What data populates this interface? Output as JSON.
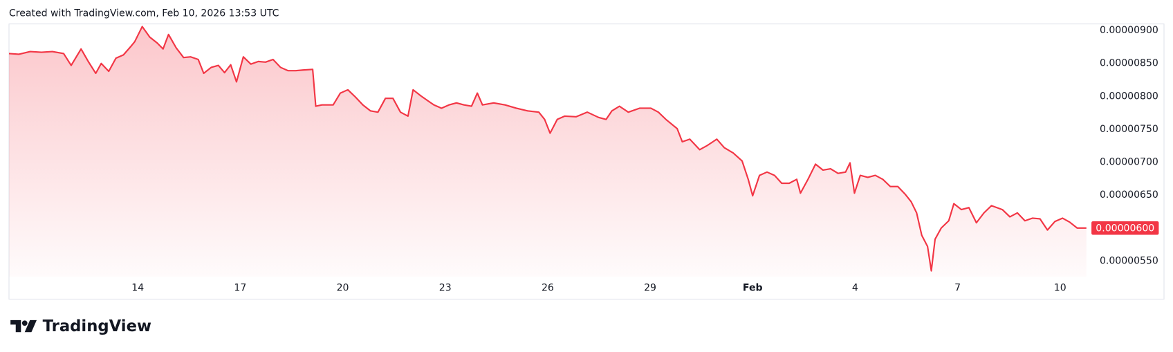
{
  "chart_data": {
    "type": "area",
    "caption": "Created with TradingView.com, Feb 10, 2026 13:53 UTC",
    "brand": "TradingView",
    "color": "#f23645",
    "grid": false,
    "xlim": [
      10.23,
      41.83
    ],
    "ylim": [
      5.26e-06,
      9.1e-06
    ],
    "xticks": [
      14,
      17,
      20,
      23,
      26,
      29,
      {
        "value": 32,
        "label": "Feb"
      },
      {
        "value": 35,
        "label": "4"
      },
      {
        "value": 38,
        "label": "7"
      },
      {
        "value": 41,
        "label": "10"
      }
    ],
    "yticks": [
      {
        "value": 5.5e-06,
        "label": "0.00000550"
      },
      {
        "value": 6e-06,
        "label": "0.00000600"
      },
      {
        "value": 6.5e-06,
        "label": "0.00000650"
      },
      {
        "value": 7e-06,
        "label": "0.00000700"
      },
      {
        "value": 7.5e-06,
        "label": "0.00000750"
      },
      {
        "value": 8e-06,
        "label": "0.00000800"
      },
      {
        "value": 8.5e-06,
        "label": "0.00000850"
      },
      {
        "value": 9e-06,
        "label": "0.00000900"
      }
    ],
    "last_value_label": "0.00000600",
    "x": [
      10.23,
      10.52,
      10.85,
      11.18,
      11.5,
      11.83,
      12.05,
      12.34,
      12.55,
      12.77,
      12.93,
      13.15,
      13.36,
      13.58,
      13.8,
      13.91,
      14.13,
      14.35,
      14.57,
      14.74,
      14.9,
      15.12,
      15.34,
      15.55,
      15.77,
      15.93,
      16.15,
      16.36,
      16.54,
      16.72,
      16.89,
      17.09,
      17.31,
      17.53,
      17.74,
      17.96,
      18.18,
      18.4,
      18.62,
      18.84,
      19.12,
      19.21,
      19.39,
      19.72,
      19.93,
      20.15,
      20.37,
      20.59,
      20.81,
      21.03,
      21.25,
      21.47,
      21.69,
      21.91,
      22.06,
      22.28,
      22.5,
      22.67,
      22.89,
      23.11,
      23.33,
      23.55,
      23.77,
      23.94,
      24.09,
      24.42,
      24.75,
      25.08,
      25.41,
      25.74,
      25.91,
      26.07,
      26.28,
      26.5,
      26.83,
      27.16,
      27.49,
      27.71,
      27.88,
      28.1,
      28.36,
      28.69,
      29.02,
      29.24,
      29.46,
      29.79,
      29.94,
      30.16,
      30.45,
      30.66,
      30.95,
      31.17,
      31.43,
      31.69,
      31.87,
      32.0,
      32.2,
      32.42,
      32.64,
      32.85,
      33.07,
      33.29,
      33.4,
      33.62,
      33.84,
      34.06,
      34.28,
      34.5,
      34.72,
      34.85,
      34.98,
      35.15,
      35.37,
      35.59,
      35.81,
      36.03,
      36.25,
      36.47,
      36.64,
      36.8,
      36.95,
      37.12,
      37.23,
      37.34,
      37.52,
      37.74,
      37.89,
      38.11,
      38.33,
      38.55,
      38.77,
      38.99,
      39.31,
      39.53,
      39.75,
      39.97,
      40.19,
      40.41,
      40.63,
      40.85,
      41.07,
      41.28,
      41.5,
      41.77
    ],
    "values": [
      8.65e-06,
      8.64e-06,
      8.68e-06,
      8.67e-06,
      8.68e-06,
      8.65e-06,
      8.47e-06,
      8.72e-06,
      8.53e-06,
      8.35e-06,
      8.5e-06,
      8.38e-06,
      8.58e-06,
      8.63e-06,
      8.76e-06,
      8.83e-06,
      9.06e-06,
      8.9e-06,
      8.81e-06,
      8.72e-06,
      8.94e-06,
      8.74e-06,
      8.59e-06,
      8.6e-06,
      8.56e-06,
      8.35e-06,
      8.44e-06,
      8.47e-06,
      8.36e-06,
      8.48e-06,
      8.22e-06,
      8.6e-06,
      8.49e-06,
      8.53e-06,
      8.52e-06,
      8.56e-06,
      8.44e-06,
      8.39e-06,
      8.39e-06,
      8.4e-06,
      8.41e-06,
      7.85e-06,
      7.87e-06,
      7.87e-06,
      8.05e-06,
      8.1e-06,
      7.99e-06,
      7.87e-06,
      7.78e-06,
      7.76e-06,
      7.97e-06,
      7.97e-06,
      7.76e-06,
      7.7e-06,
      8.1e-06,
      8.01e-06,
      7.93e-06,
      7.87e-06,
      7.82e-06,
      7.87e-06,
      7.9e-06,
      7.87e-06,
      7.85e-06,
      8.05e-06,
      7.87e-06,
      7.9e-06,
      7.87e-06,
      7.82e-06,
      7.78e-06,
      7.76e-06,
      7.65e-06,
      7.44e-06,
      7.65e-06,
      7.7e-06,
      7.69e-06,
      7.76e-06,
      7.68e-06,
      7.65e-06,
      7.78e-06,
      7.85e-06,
      7.76e-06,
      7.82e-06,
      7.82e-06,
      7.76e-06,
      7.65e-06,
      7.51e-06,
      7.31e-06,
      7.35e-06,
      7.19e-06,
      7.25e-06,
      7.35e-06,
      7.22e-06,
      7.14e-06,
      7.02e-06,
      6.74e-06,
      6.49e-06,
      6.8e-06,
      6.85e-06,
      6.8e-06,
      6.68e-06,
      6.68e-06,
      6.74e-06,
      6.53e-06,
      6.74e-06,
      6.97e-06,
      6.88e-06,
      6.9e-06,
      6.83e-06,
      6.85e-06,
      6.99e-06,
      6.53e-06,
      6.8e-06,
      6.77e-06,
      6.8e-06,
      6.74e-06,
      6.63e-06,
      6.63e-06,
      6.51e-06,
      6.4e-06,
      6.23e-06,
      5.89e-06,
      5.72e-06,
      5.35e-06,
      5.83e-06,
      6e-06,
      6.11e-06,
      6.37e-06,
      6.28e-06,
      6.31e-06,
      6.08e-06,
      6.23e-06,
      6.34e-06,
      6.28e-06,
      6.17e-06,
      6.23e-06,
      6.11e-06,
      6.15e-06,
      6.14e-06,
      5.97e-06,
      6.1e-06,
      6.15e-06,
      6.09e-06,
      6e-06,
      6e-06
    ]
  }
}
